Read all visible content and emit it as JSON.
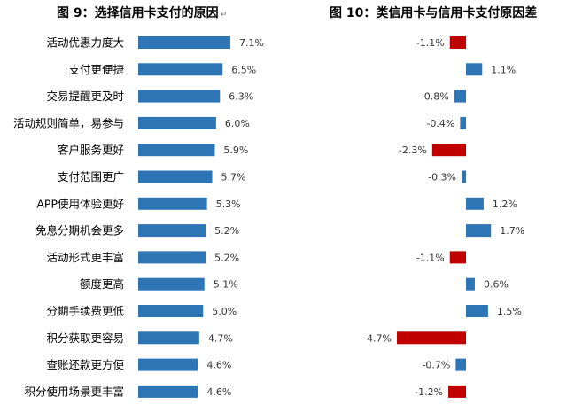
{
  "titles": {
    "left": "图 9：选择信用卡支付的原因",
    "left_suffix": "↵",
    "right": "图 10：类信用卡与信用卡支付原因差"
  },
  "colors": {
    "bar_blue": "#2e75b6",
    "bar_red": "#c00000"
  },
  "chart_data": [
    {
      "type": "bar",
      "orientation": "horizontal",
      "title": "图 9：选择信用卡支付的原因",
      "categories": [
        "活动优惠力度大",
        "支付更便捷",
        "交易提醒更及时",
        "活动规则简单，易参与",
        "客户服务更好",
        "支付范围更广",
        "APP使用体验更好",
        "免息分期机会更多",
        "活动形式更丰富",
        "额度更高",
        "分期手续费更低",
        "积分获取更容易",
        "查账还款更方便",
        "积分使用场景更丰富"
      ],
      "values": [
        7.1,
        6.5,
        6.3,
        6.0,
        5.9,
        5.7,
        5.3,
        5.2,
        5.2,
        5.1,
        5.0,
        4.7,
        4.6,
        4.6
      ],
      "labels": [
        "7.1%",
        "6.5%",
        "6.3%",
        "6.0%",
        "5.9%",
        "5.7%",
        "5.3%",
        "5.2%",
        "5.2%",
        "5.1%",
        "5.0%",
        "4.7%",
        "4.6%",
        "4.6%"
      ],
      "unit": "%",
      "grid": false,
      "legend": "none"
    },
    {
      "type": "bar",
      "orientation": "horizontal",
      "title": "图 10：类信用卡与信用卡支付原因差",
      "categories": [
        "活动优惠力度大",
        "支付更便捷",
        "交易提醒更及时",
        "活动规则简单，易参与",
        "客户服务更好",
        "支付范围更广",
        "APP使用体验更好",
        "免息分期机会更多",
        "活动形式更丰富",
        "额度更高",
        "分期手续费更低",
        "积分获取更容易",
        "查账还款更方便",
        "积分使用场景更丰富"
      ],
      "values": [
        -1.1,
        1.1,
        -0.8,
        -0.4,
        -2.3,
        -0.3,
        1.2,
        1.7,
        -1.1,
        0.6,
        1.5,
        -4.7,
        -0.7,
        -1.2
      ],
      "labels": [
        "-1.1%",
        "1.1%",
        "-0.8%",
        "-0.4%",
        "-2.3%",
        "-0.3%",
        "1.2%",
        "1.7%",
        "-1.1%",
        "0.6%",
        "1.5%",
        "-4.7%",
        "-0.7%",
        "-1.2%"
      ],
      "unit": "%",
      "highlight_threshold": -1.0,
      "grid": false,
      "legend": "none"
    }
  ]
}
